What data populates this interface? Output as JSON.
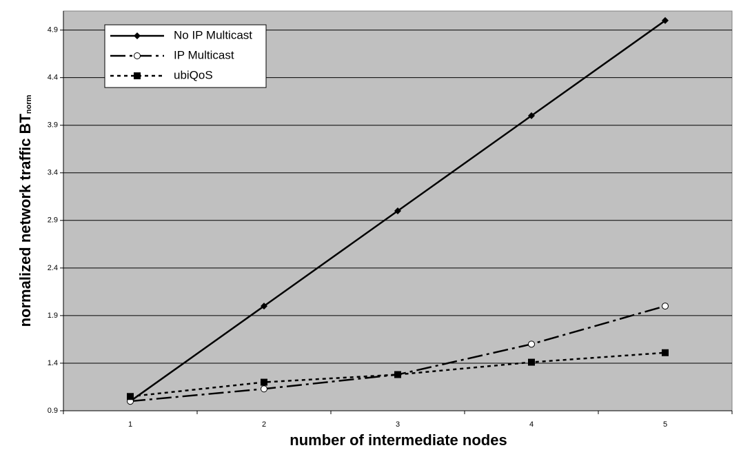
{
  "chart_data": {
    "type": "line",
    "x_label": "number of intermediate nodes",
    "y_label": "normalized network traffic BT",
    "y_label_subscript": "norm",
    "categories": [
      "1",
      "2",
      "3",
      "4",
      "5"
    ],
    "series": [
      {
        "name": "No IP Multicast",
        "color": "#000000",
        "marker": "diamond",
        "dash": "solid",
        "values": [
          1.0,
          2.0,
          3.0,
          4.0,
          5.0
        ]
      },
      {
        "name": "IP Multicast",
        "color": "#000000",
        "marker": "circle",
        "dash": "dashdot",
        "values": [
          1.0,
          1.13,
          1.28,
          1.6,
          2.0
        ]
      },
      {
        "name": "ubiQoS",
        "color": "#000000",
        "marker": "square",
        "dash": "dotted",
        "values": [
          1.05,
          1.2,
          1.28,
          1.41,
          1.51
        ]
      }
    ],
    "ylim": [
      0.9,
      5.1
    ],
    "yticks": [
      0.9,
      1.4,
      1.9,
      2.4,
      2.9,
      3.4,
      3.9,
      4.4,
      4.9
    ],
    "grid": true,
    "legend": "upper-left",
    "background": "#c0c0c0"
  }
}
